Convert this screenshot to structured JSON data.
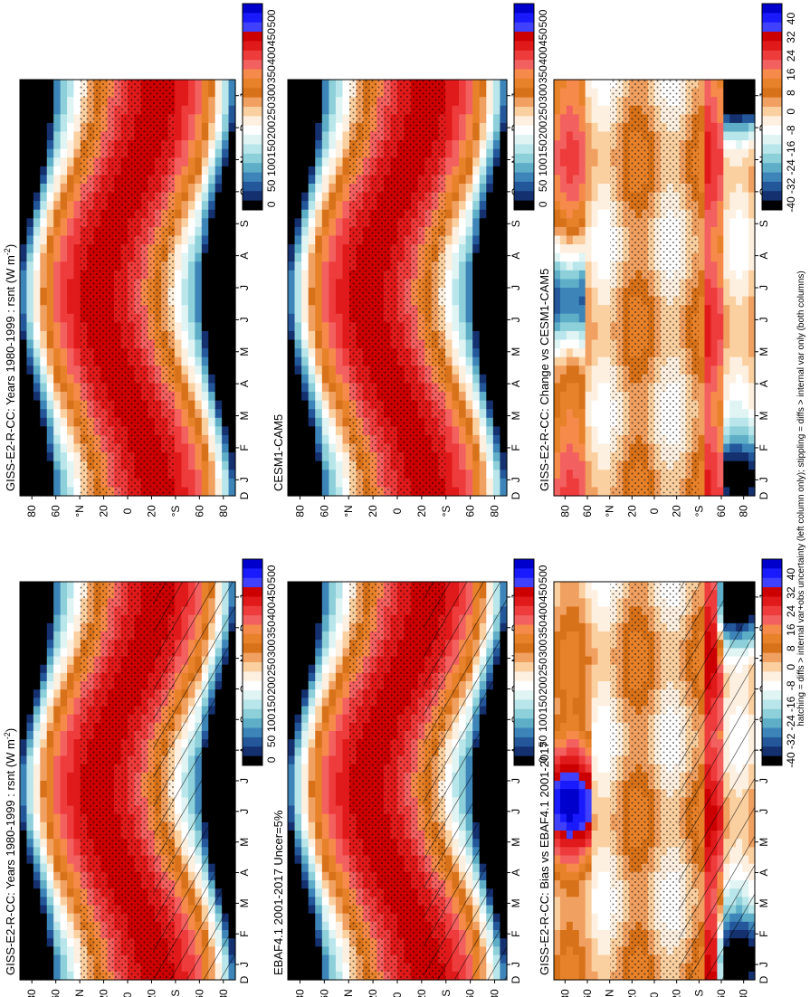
{
  "footnote": "hatching = diffs > internal var+obs uncertainty (left column only); stippling = diffs > internal var only (both columns)",
  "months": [
    "J",
    "F",
    "M",
    "A",
    "M",
    "J",
    "J",
    "A",
    "S",
    "O",
    "N",
    "D",
    "J"
  ],
  "latitude_ticks": [
    "80",
    "60",
    "°N",
    "20",
    "0",
    "20",
    "°S",
    "60",
    "80"
  ],
  "month_axis_first": "D",
  "colorbars": {
    "absolute": {
      "labels": [
        "500",
        "450",
        "400",
        "350",
        "300",
        "250",
        "200",
        "150",
        "100",
        "50",
        "0"
      ],
      "colors": [
        "#0000cc",
        "#1a1aff",
        "#4040ff",
        "#cc0000",
        "#e01a1a",
        "#ee3b3b",
        "#f36060",
        "#f58a4a",
        "#e8822a",
        "#d8721a",
        "#f0a060",
        "#fbd0a0",
        "#fdf0e0",
        "#ffffff",
        "#e0f4f4",
        "#b8e6ea",
        "#8ed0da",
        "#5eaec8",
        "#3d85b8",
        "#23579a",
        "#14306e",
        "#000000"
      ]
    },
    "difference": {
      "labels": [
        "40",
        "32",
        "24",
        "16",
        "8",
        "0",
        "-8",
        "-16",
        "-24",
        "-32",
        "-40"
      ],
      "colors": [
        "#0000cc",
        "#1a1aff",
        "#4040ff",
        "#cc0000",
        "#e01a1a",
        "#ee3b3b",
        "#f36060",
        "#f58a4a",
        "#e8822a",
        "#d8721a",
        "#f0a060",
        "#fbd0a0",
        "#fdf0e0",
        "#ffffff",
        "#e0f4f4",
        "#b8e6ea",
        "#8ed0da",
        "#5eaec8",
        "#3d85b8",
        "#23579a",
        "#14306e",
        "#000000"
      ]
    }
  },
  "panels": [
    {
      "id": "p1",
      "title": "GISS-E2-R-CC: Years 1980-1999 : rsnt (W m",
      "title_sup": "-2",
      "title_end": ")",
      "cbar": "absolute",
      "hatch": true,
      "kind": "abs"
    },
    {
      "id": "p2",
      "title": "GISS-E2-R-CC: Years 1980-1999 : rsnt (W m",
      "title_sup": "-2",
      "title_end": ")",
      "cbar": "absolute",
      "hatch": false,
      "kind": "abs"
    },
    {
      "id": "p3",
      "title": "EBAF4.1 2001-2017 Uncer=5%",
      "title_sup": "",
      "title_end": "",
      "cbar": "absolute",
      "hatch": true,
      "kind": "abs"
    },
    {
      "id": "p4",
      "title": "CESM1-CAM5",
      "title_sup": "",
      "title_end": "",
      "cbar": "absolute",
      "hatch": false,
      "kind": "abs"
    },
    {
      "id": "p5",
      "title": "GISS-E2-R-CC: Bias vs EBAF4.1 2001-2017",
      "title_sup": "",
      "title_end": "",
      "cbar": "difference",
      "hatch": true,
      "kind": "bias"
    },
    {
      "id": "p6",
      "title": "GISS-E2-R-CC: Change vs CESM1-CAM5",
      "title_sup": "",
      "title_end": "",
      "cbar": "difference",
      "hatch": false,
      "kind": "change"
    }
  ],
  "chart_data": [
    {
      "type": "heatmap",
      "title": "GISS-E2-R-CC: Years 1980-1999 : rsnt (W m-2)",
      "x": "month (J..J)",
      "y": "latitude (-80..80)",
      "zlim": [
        0,
        500
      ],
      "notes": "annual cycle of net TOA shortwave; maxima ~400 in summer subtropics, ~0 polar night"
    },
    {
      "type": "heatmap",
      "title": "EBAF4.1 2001-2017 Uncer=5%",
      "x": "month (J..J)",
      "y": "latitude (-80..80)",
      "zlim": [
        0,
        500
      ]
    },
    {
      "type": "heatmap",
      "title": "GISS-E2-R-CC: Years 1980-1999 : rsnt (W m-2)",
      "x": "month (J..J)",
      "y": "latitude (-80..80)",
      "zlim": [
        0,
        500
      ]
    },
    {
      "type": "heatmap",
      "title": "CESM1-CAM5",
      "x": "month (J..J)",
      "y": "latitude (-80..80)",
      "zlim": [
        0,
        500
      ]
    },
    {
      "type": "heatmap",
      "title": "GISS-E2-R-CC: Bias vs EBAF4.1 2001-2017",
      "x": "month (J..J)",
      "y": "latitude (-80..80)",
      "zlim": [
        -40,
        40
      ]
    },
    {
      "type": "heatmap",
      "title": "GISS-E2-R-CC: Change vs CESM1-CAM5",
      "x": "month (J..J)",
      "y": "latitude (-80..80)",
      "zlim": [
        -40,
        40
      ]
    }
  ]
}
